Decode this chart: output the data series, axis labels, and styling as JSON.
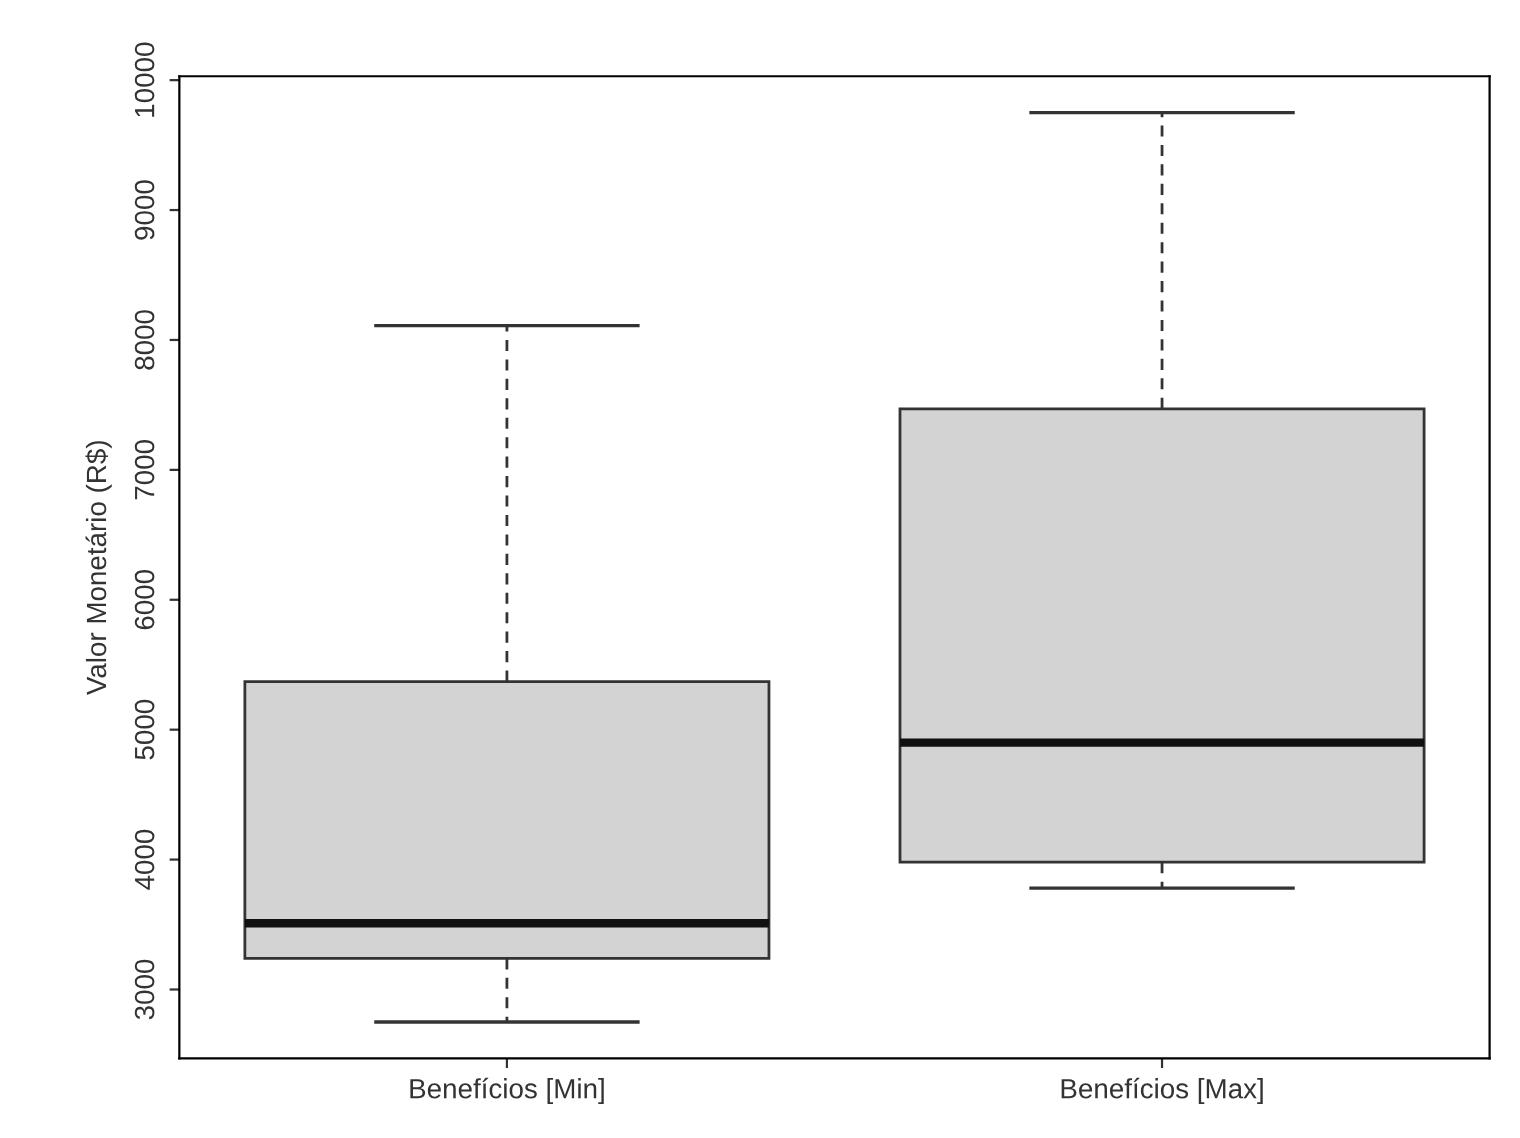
{
  "chart_data": {
    "type": "box",
    "ylabel": "Valor Monetário (R$)",
    "categories": [
      "Benefícios [Min]",
      "Benefícios [Max]"
    ],
    "boxes": [
      {
        "low": 2750,
        "q1": 3240,
        "median": 3510,
        "q3": 5370,
        "high": 8110
      },
      {
        "low": 3780,
        "q1": 3980,
        "median": 4900,
        "q3": 7470,
        "high": 9750
      }
    ],
    "color": "#d3d3d3",
    "ylim": [
      2470,
      10030
    ],
    "yticks": [
      3000,
      4000,
      5000,
      6000,
      7000,
      8000,
      9000,
      10000
    ],
    "grid": false
  }
}
